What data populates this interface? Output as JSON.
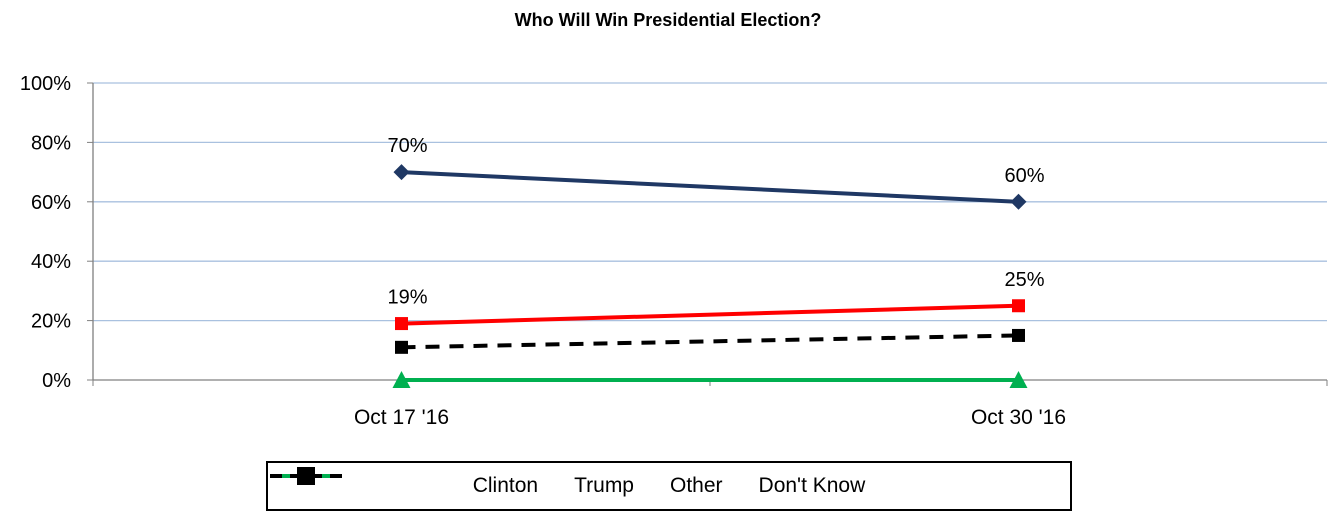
{
  "chart_data": {
    "type": "line",
    "title": "Who Will Win Presidential Election?",
    "categories": [
      "Oct 17 '16",
      "Oct 30 '16"
    ],
    "ylim": [
      0,
      100
    ],
    "yticks": [
      "0%",
      "20%",
      "40%",
      "60%",
      "80%",
      "100%"
    ],
    "ytick_values": [
      0,
      20,
      40,
      60,
      80,
      100
    ],
    "grid": true,
    "legend_position": "bottom",
    "series": [
      {
        "name": "Clinton",
        "values": [
          70,
          60
        ],
        "labels": [
          "70%",
          "60%"
        ],
        "color": "#1f3864",
        "marker": "diamond",
        "dash": false
      },
      {
        "name": "Trump",
        "values": [
          19,
          25
        ],
        "labels": [
          "19%",
          "25%"
        ],
        "color": "#ff0000",
        "marker": "square",
        "dash": false
      },
      {
        "name": "Other",
        "values": [
          0,
          0
        ],
        "labels": [],
        "color": "#00b050",
        "marker": "triangle",
        "dash": false
      },
      {
        "name": "Don't Know",
        "values": [
          11,
          15
        ],
        "labels": [],
        "color": "#000000",
        "marker": "square",
        "dash": true
      }
    ]
  }
}
